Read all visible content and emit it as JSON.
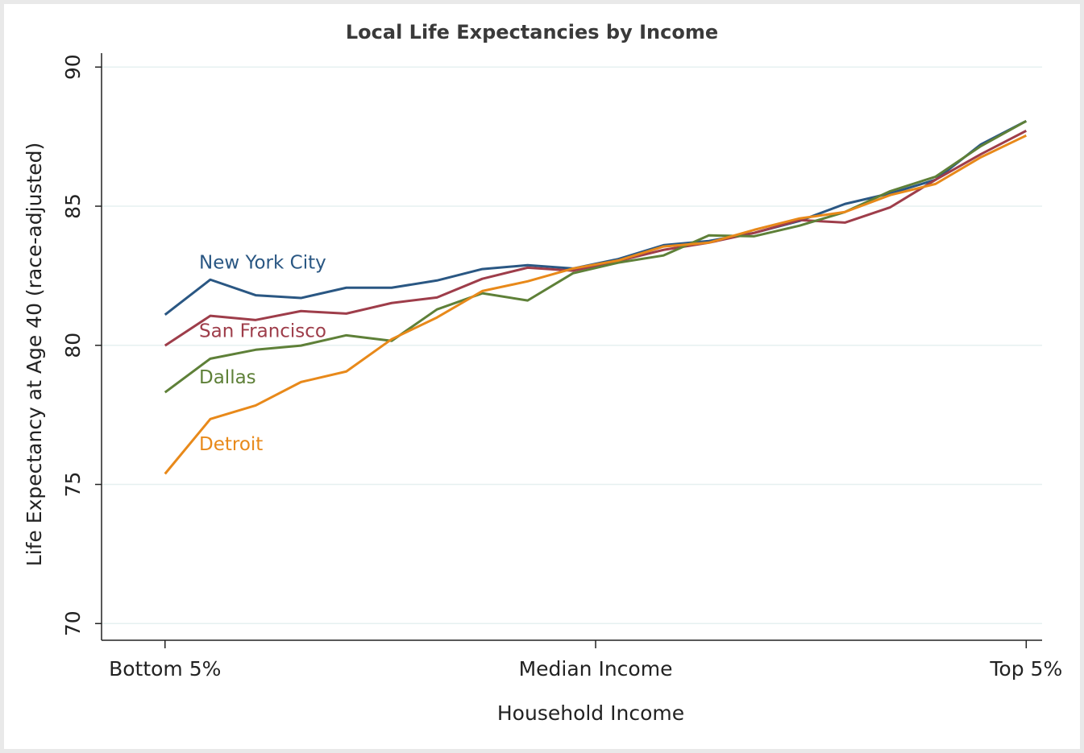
{
  "chart_data": {
    "type": "line",
    "title": "Local Life Expectancies by Income",
    "x_label": "Household Income",
    "y_label": "Life Expectancy at Age 40 (race-adjusted)",
    "x": [
      1,
      2,
      3,
      4,
      5,
      6,
      7,
      8,
      9,
      10,
      11,
      12,
      13,
      14,
      15,
      16,
      17,
      18,
      19,
      20
    ],
    "xlim": [
      -0.4,
      20.35
    ],
    "xticks": [
      {
        "value": 1,
        "label": "Bottom 5%"
      },
      {
        "value": 10.5,
        "label": "Median Income"
      },
      {
        "value": 20,
        "label": "Top 5%"
      }
    ],
    "ylim": [
      69.4,
      90.5
    ],
    "yticks": [
      70,
      75,
      80,
      85,
      90
    ],
    "grid": true,
    "series": [
      {
        "name": "New York City",
        "color": "#2a5783",
        "values": [
          81.1,
          82.36,
          81.8,
          81.7,
          82.07,
          82.07,
          82.33,
          82.74,
          82.88,
          82.76,
          83.1,
          83.6,
          83.75,
          84.04,
          84.47,
          85.08,
          85.46,
          85.95,
          87.22,
          88.06
        ]
      },
      {
        "name": "San Francisco",
        "color": "#9e3d4a",
        "values": [
          79.99,
          81.06,
          80.91,
          81.23,
          81.14,
          81.52,
          81.72,
          82.39,
          82.79,
          82.68,
          83.03,
          83.43,
          83.69,
          84.04,
          84.5,
          84.41,
          84.96,
          85.95,
          86.87,
          87.71
        ]
      },
      {
        "name": "Dallas",
        "color": "#5e8038",
        "values": [
          78.31,
          79.52,
          79.84,
          79.99,
          80.36,
          80.16,
          81.29,
          81.87,
          81.61,
          82.59,
          82.97,
          83.23,
          83.95,
          83.92,
          84.3,
          84.79,
          85.54,
          86.06,
          87.16,
          88.06
        ]
      },
      {
        "name": "Detroit",
        "color": "#e8891a",
        "values": [
          75.38,
          77.35,
          77.84,
          78.68,
          79.06,
          80.22,
          81.0,
          81.95,
          82.3,
          82.76,
          83.05,
          83.55,
          83.69,
          84.15,
          84.56,
          84.79,
          85.4,
          85.8,
          86.76,
          87.54
        ]
      }
    ]
  }
}
